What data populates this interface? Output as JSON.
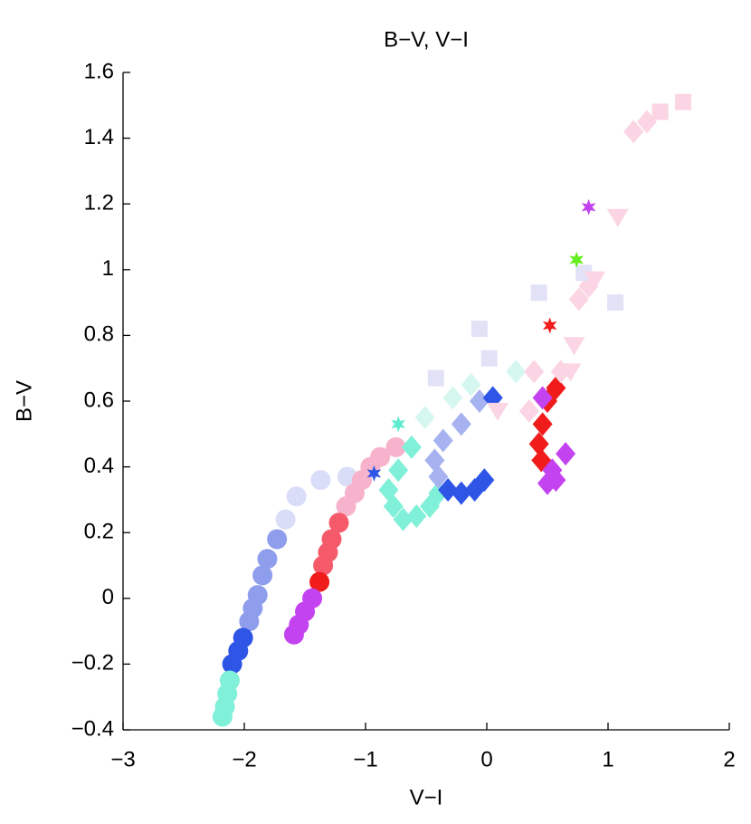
{
  "chart_data": {
    "type": "scatter",
    "title": "B−V, V−I",
    "xlabel": "V−I",
    "ylabel": "B−V",
    "xlim": [
      -3,
      2
    ],
    "ylim": [
      -0.4,
      1.6
    ],
    "xticks": [
      {
        "value": -3,
        "label": "−3"
      },
      {
        "value": -2,
        "label": "−2"
      },
      {
        "value": -1,
        "label": "−1"
      },
      0,
      1,
      2
    ],
    "yticks": [
      {
        "value": -0.4,
        "label": "−0.4"
      },
      {
        "value": -0.2,
        "label": "−0.2"
      },
      0,
      0.2,
      0.4,
      0.6,
      0.8,
      1,
      1.2,
      1.4,
      1.6
    ],
    "grid": false,
    "series": [
      {
        "marker": "circle",
        "color": "#d9ddf7",
        "x": [
          -1.15,
          -1.37,
          -1.57,
          -1.66
        ],
        "y": [
          0.37,
          0.36,
          0.31,
          0.24
        ]
      },
      {
        "marker": "circle",
        "color": "#8f9ded",
        "x": [
          -1.73,
          -1.81,
          -1.85,
          -1.89,
          -1.93,
          -1.96
        ],
        "y": [
          0.18,
          0.12,
          0.07,
          0.01,
          -0.03,
          -0.07
        ]
      },
      {
        "marker": "circle",
        "color": "#2f55e6",
        "x": [
          -2.01,
          -2.05,
          -2.1
        ],
        "y": [
          -0.12,
          -0.16,
          -0.2
        ]
      },
      {
        "marker": "circle",
        "color": "#80f0d8",
        "x": [
          -2.12,
          -2.14,
          -2.16,
          -2.18
        ],
        "y": [
          -0.25,
          -0.29,
          -0.33,
          -0.36
        ]
      },
      {
        "marker": "circle",
        "color": "#f7b3cb",
        "x": [
          -0.75,
          -0.88,
          -0.96,
          -1.03,
          -1.09,
          -1.16
        ],
        "y": [
          0.46,
          0.43,
          0.4,
          0.36,
          0.32,
          0.28
        ]
      },
      {
        "marker": "circle",
        "color": "#f55a6a",
        "x": [
          -1.22,
          -1.28,
          -1.31,
          -1.35
        ],
        "y": [
          0.23,
          0.18,
          0.14,
          0.1
        ]
      },
      {
        "marker": "circle",
        "color": "#f01c1c",
        "x": [
          -1.38
        ],
        "y": [
          0.05
        ]
      },
      {
        "marker": "circle",
        "color": "#c443f0",
        "x": [
          -1.44,
          -1.5,
          -1.55,
          -1.59
        ],
        "y": [
          0.0,
          -0.04,
          -0.08,
          -0.11
        ]
      },
      {
        "marker": "diamond",
        "color": "#d6f7ef",
        "x": [
          -0.51,
          -0.28,
          -0.13,
          0.24
        ],
        "y": [
          0.55,
          0.61,
          0.65,
          0.69
        ]
      },
      {
        "marker": "diamond",
        "color": "#80f0d8",
        "x": [
          -0.62,
          -0.73,
          -0.81,
          -0.77,
          -0.69,
          -0.58,
          -0.47,
          -0.4
        ],
        "y": [
          0.46,
          0.39,
          0.33,
          0.28,
          0.24,
          0.25,
          0.28,
          0.32
        ]
      },
      {
        "marker": "diamond",
        "color": "#a7b3f0",
        "x": [
          -0.06,
          -0.21,
          -0.36,
          -0.43,
          -0.4
        ],
        "y": [
          0.6,
          0.53,
          0.48,
          0.42,
          0.37
        ]
      },
      {
        "marker": "diamond",
        "color": "#2f55e6",
        "x": [
          0.05,
          -0.32,
          -0.21,
          -0.1,
          -0.02
        ],
        "y": [
          0.61,
          0.33,
          0.32,
          0.33,
          0.36
        ]
      },
      {
        "marker": "diamond",
        "color": "#f01c1c",
        "x": [
          0.46,
          0.43,
          0.45,
          0.57,
          0.5
        ],
        "y": [
          0.53,
          0.47,
          0.42,
          0.64,
          0.6
        ]
      },
      {
        "marker": "diamond",
        "color": "#c443f0",
        "x": [
          0.46,
          0.54,
          0.65,
          0.57,
          0.5
        ],
        "y": [
          0.61,
          0.39,
          0.44,
          0.36,
          0.35
        ]
      },
      {
        "marker": "diamond",
        "color": "#fbd5e3",
        "x": [
          0.35,
          0.39,
          0.61,
          0.76,
          0.84,
          1.21,
          1.32
        ],
        "y": [
          0.57,
          0.69,
          0.69,
          0.91,
          0.95,
          1.42,
          1.45
        ]
      },
      {
        "marker": "square",
        "color": "#e2e2f7",
        "x": [
          0.43,
          0.8,
          1.06,
          0.02,
          -0.06,
          -0.42
        ],
        "y": [
          0.93,
          0.99,
          0.9,
          0.73,
          0.82,
          0.67
        ]
      },
      {
        "marker": "square",
        "color": "#fbd5e3",
        "x": [
          1.62,
          1.43
        ],
        "y": [
          1.51,
          1.48
        ]
      },
      {
        "marker": "triangle-down",
        "color": "#fbd5e3",
        "x": [
          1.08,
          0.89,
          0.72,
          0.69,
          0.09
        ],
        "y": [
          1.16,
          0.97,
          0.77,
          0.69,
          0.57
        ]
      },
      {
        "marker": "star",
        "color": "#c443f0",
        "x": [
          0.84
        ],
        "y": [
          1.19
        ]
      },
      {
        "marker": "star",
        "color": "#66ee22",
        "x": [
          0.74
        ],
        "y": [
          1.03
        ]
      },
      {
        "marker": "star",
        "color": "#f01c1c",
        "x": [
          0.52
        ],
        "y": [
          0.83
        ]
      },
      {
        "marker": "star",
        "color": "#2f55e6",
        "x": [
          -0.93
        ],
        "y": [
          0.38
        ]
      },
      {
        "marker": "star",
        "color": "#60ecd0",
        "x": [
          -0.73
        ],
        "y": [
          0.53
        ]
      }
    ]
  }
}
